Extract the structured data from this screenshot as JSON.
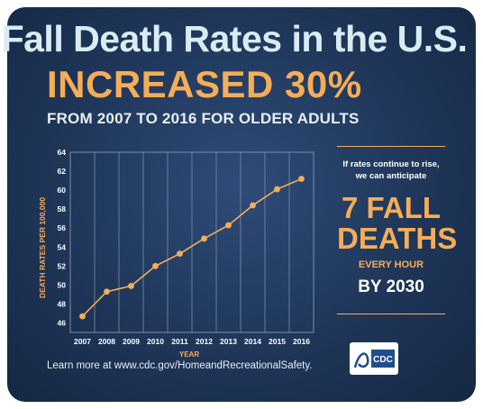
{
  "header": {
    "title": "Fall Death Rates in the U.S.",
    "headline": "INCREASED 30%",
    "subtitle": "FROM 2007 TO 2016 FOR OLDER ADULTS"
  },
  "callout": {
    "intro": "If rates continue to rise, we can anticipate",
    "big_line1": "7 FALL",
    "big_line2": "DEATHS",
    "every_hour": "EVERY HOUR",
    "by_year": "BY 2030"
  },
  "footer": {
    "text": "Learn more at www.cdc.gov/HomeandRecreationalSafety."
  },
  "logo": {
    "text": "CDC"
  },
  "colors": {
    "background": "#1f3659",
    "accent": "#f6ad57",
    "title": "#d9ecf5",
    "gridline": "#7d8ea8"
  },
  "chart_data": {
    "type": "line",
    "x": [
      "2007",
      "2008",
      "2009",
      "2010",
      "2011",
      "2012",
      "2013",
      "2014",
      "2015",
      "2016"
    ],
    "series": [
      {
        "values": [
          46.7,
          49.3,
          49.9,
          52.0,
          53.3,
          54.9,
          56.3,
          58.4,
          60.1,
          61.2
        ]
      }
    ],
    "xlabel": "YEAR",
    "ylabel": "DEATH RATES PER 100,000",
    "ylim": [
      45,
      64
    ],
    "yticks": [
      46,
      48,
      50,
      52,
      54,
      56,
      58,
      60,
      62,
      64
    ],
    "grid": true
  }
}
